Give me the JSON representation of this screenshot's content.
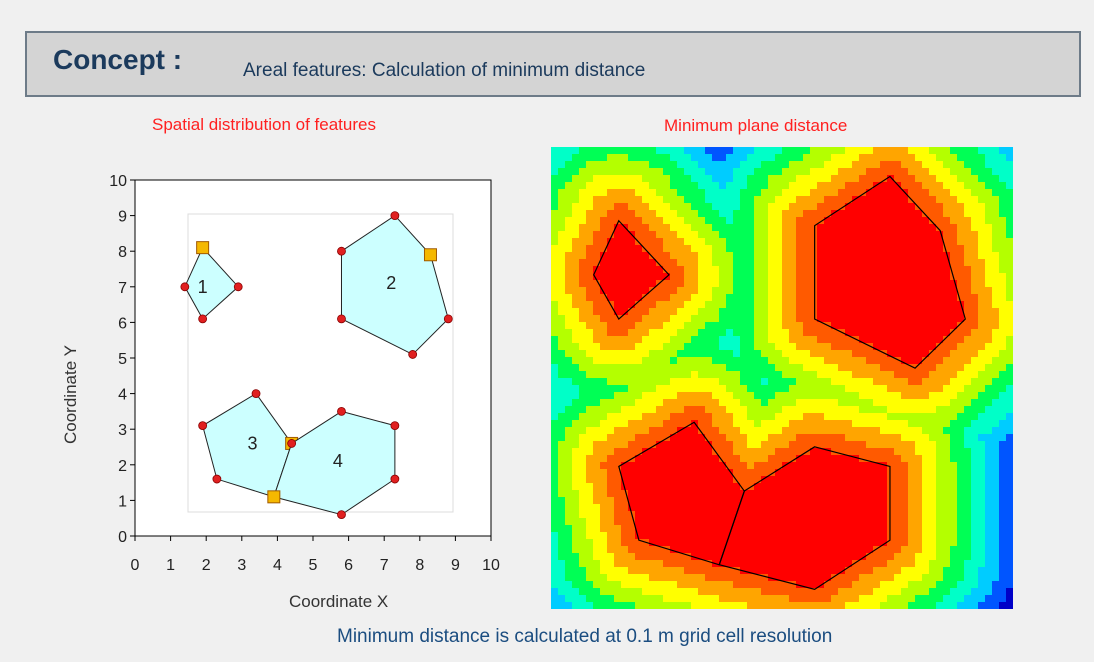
{
  "header": {
    "concept_label": "Concept :",
    "description": "Areal features: Calculation of minimum distance"
  },
  "left_panel": {
    "caption": "Spatial distribution of features",
    "x_axis_label": "Coordinate X",
    "y_axis_label": "Coordinate Y",
    "x_ticks": [
      "0",
      "1",
      "2",
      "3",
      "4",
      "5",
      "6",
      "7",
      "8",
      "9",
      "10"
    ],
    "y_ticks": [
      "0",
      "1",
      "2",
      "3",
      "4",
      "5",
      "6",
      "7",
      "8",
      "9",
      "10"
    ]
  },
  "right_panel": {
    "caption": "Minimum plane distance"
  },
  "footer": {
    "text": "Minimum distance is calculated at 0.1 m grid cell resolution"
  },
  "features": [
    {
      "label": "1",
      "label_at": [
        1.9,
        7.0
      ],
      "vertices": [
        [
          1.9,
          8.1
        ],
        [
          2.9,
          7.0
        ],
        [
          1.9,
          6.1
        ],
        [
          1.4,
          7.0
        ]
      ],
      "nearest": [
        1.9,
        8.1
      ]
    },
    {
      "label": "2",
      "label_at": [
        7.2,
        7.1
      ],
      "vertices": [
        [
          7.3,
          9.0
        ],
        [
          8.3,
          7.9
        ],
        [
          8.8,
          6.1
        ],
        [
          7.8,
          5.1
        ],
        [
          5.8,
          6.1
        ],
        [
          5.8,
          8.0
        ]
      ],
      "nearest": [
        8.3,
        7.9
      ]
    },
    {
      "label": "3",
      "label_at": [
        3.3,
        2.6
      ],
      "vertices": [
        [
          3.4,
          4.0
        ],
        [
          4.4,
          2.6
        ],
        [
          3.9,
          1.1
        ],
        [
          2.3,
          1.6
        ],
        [
          1.9,
          3.1
        ]
      ],
      "nearest": [
        4.4,
        2.6
      ]
    },
    {
      "label": "4",
      "label_at": [
        5.7,
        2.1
      ],
      "vertices": [
        [
          5.8,
          3.5
        ],
        [
          7.3,
          3.1
        ],
        [
          7.3,
          1.6
        ],
        [
          5.8,
          0.6
        ],
        [
          3.9,
          1.1
        ],
        [
          4.4,
          2.6
        ]
      ],
      "nearest": [
        3.9,
        1.1
      ]
    }
  ],
  "colors": {
    "caption": "#ff2020",
    "polygon_fill": "#ccffff",
    "vertex": "#e02020",
    "nearest_vertex": "#f5b800",
    "distance_ramp": [
      "#ff0000",
      "#ff5a00",
      "#ffa500",
      "#ffff00",
      "#b4ff00",
      "#00ff55",
      "#00ffc8",
      "#00ccff",
      "#0055ff",
      "#0000c8",
      "#c800ff",
      "#ff00ff"
    ]
  }
}
